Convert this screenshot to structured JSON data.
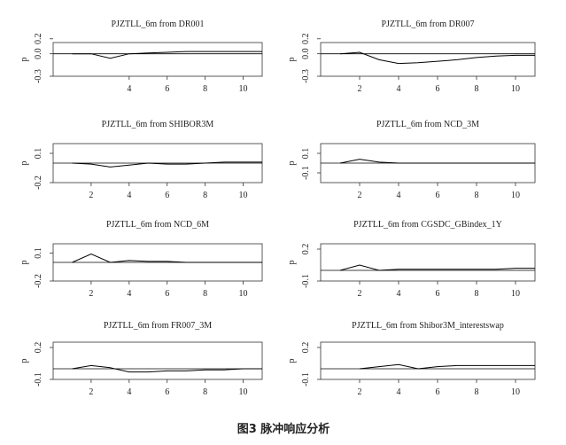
{
  "caption": "图3 脉冲响应分析",
  "chart_data": [
    {
      "type": "line",
      "title": "PJZTLL_6m from DR001",
      "ylabel": "p",
      "ylim": [
        -0.3,
        0.15
      ],
      "yticks": [
        "-0.3",
        "0.0",
        "0.2"
      ],
      "xlim": [
        0,
        11
      ],
      "xticks": [
        "4",
        "6",
        "8",
        "10"
      ],
      "x": [
        1,
        2,
        3,
        4,
        5,
        6,
        7,
        8,
        9,
        10,
        11
      ],
      "values": [
        0.0,
        0.0,
        -0.06,
        0.0,
        0.01,
        0.02,
        0.03,
        0.03,
        0.03,
        0.03,
        0.03
      ]
    },
    {
      "type": "line",
      "title": "PJZTLL_6m from DR007",
      "ylabel": "p",
      "ylim": [
        -0.3,
        0.15
      ],
      "yticks": [
        "-0.3",
        "0.0",
        "0.2"
      ],
      "xlim": [
        0,
        11
      ],
      "xticks": [
        "2",
        "4",
        "6",
        "8",
        "10"
      ],
      "x": [
        1,
        2,
        3,
        4,
        5,
        6,
        7,
        8,
        9,
        10,
        11
      ],
      "values": [
        0.0,
        0.02,
        -0.08,
        -0.13,
        -0.12,
        -0.1,
        -0.08,
        -0.05,
        -0.03,
        -0.02,
        -0.02
      ]
    },
    {
      "type": "line",
      "title": "PJZTLL_6m from SHIBOR3M",
      "ylabel": "p",
      "ylim": [
        -0.2,
        0.2
      ],
      "yticks": [
        "-0.2",
        "0.1"
      ],
      "xlim": [
        0,
        11
      ],
      "xticks": [
        "2",
        "4",
        "6",
        "8",
        "10"
      ],
      "x": [
        1,
        2,
        3,
        4,
        5,
        6,
        7,
        8,
        9,
        10,
        11
      ],
      "values": [
        0.0,
        -0.01,
        -0.04,
        -0.02,
        0.0,
        -0.01,
        -0.01,
        0.0,
        0.01,
        0.01,
        0.01
      ]
    },
    {
      "type": "line",
      "title": "PJZTLL_6m from NCD_3M",
      "ylabel": "p",
      "ylim": [
        -0.2,
        0.2
      ],
      "yticks": [
        "-0.1",
        "0.1"
      ],
      "xlim": [
        0,
        11
      ],
      "xticks": [
        "2",
        "4",
        "6",
        "8",
        "10"
      ],
      "x": [
        1,
        2,
        3,
        4,
        5,
        6,
        7,
        8,
        9,
        10,
        11
      ],
      "values": [
        0.0,
        0.04,
        0.01,
        0.0,
        0.0,
        0.0,
        0.0,
        0.0,
        0.0,
        0.0,
        0.0
      ]
    },
    {
      "type": "line",
      "title": "PJZTLL_6m from NCD_6M",
      "ylabel": "p",
      "ylim": [
        -0.2,
        0.2
      ],
      "yticks": [
        "-0.2",
        "0.1"
      ],
      "xlim": [
        0,
        11
      ],
      "xticks": [
        "2",
        "4",
        "6",
        "8",
        "10"
      ],
      "x": [
        1,
        2,
        3,
        4,
        5,
        6,
        7,
        8,
        9,
        10,
        11
      ],
      "values": [
        0.0,
        0.09,
        0.0,
        0.02,
        0.01,
        0.01,
        0.0,
        0.0,
        0.0,
        0.0,
        0.0
      ]
    },
    {
      "type": "line",
      "title": "PJZTLL_6m from CGSDC_GBindex_1Y",
      "ylabel": "p",
      "ylim": [
        -0.1,
        0.25
      ],
      "yticks": [
        "-0.1",
        "0.2"
      ],
      "xlim": [
        0,
        11
      ],
      "xticks": [
        "2",
        "4",
        "6",
        "8",
        "10"
      ],
      "x": [
        1,
        2,
        3,
        4,
        5,
        6,
        7,
        8,
        9,
        10,
        11
      ],
      "values": [
        0.0,
        0.05,
        0.0,
        0.01,
        0.01,
        0.01,
        0.01,
        0.01,
        0.01,
        0.02,
        0.02
      ]
    },
    {
      "type": "line",
      "title": "PJZTLL_6m from FR007_3M",
      "ylabel": "p",
      "ylim": [
        -0.1,
        0.25
      ],
      "yticks": [
        "-0.1",
        "0.2"
      ],
      "xlim": [
        0,
        11
      ],
      "xticks": [
        "2",
        "4",
        "6",
        "8",
        "10"
      ],
      "x": [
        1,
        2,
        3,
        4,
        5,
        6,
        7,
        8,
        9,
        10,
        11
      ],
      "values": [
        0.0,
        0.03,
        0.01,
        -0.03,
        -0.03,
        -0.02,
        -0.02,
        -0.01,
        -0.01,
        0.0,
        0.0
      ]
    },
    {
      "type": "line",
      "title": "PJZTLL_6m from Shibor3M_interestswap",
      "ylabel": "p",
      "ylim": [
        -0.1,
        0.25
      ],
      "yticks": [
        "-0.1",
        "0.2"
      ],
      "xlim": [
        0,
        11
      ],
      "xticks": [
        "2",
        "4",
        "6",
        "8",
        "10"
      ],
      "x": [
        2,
        3,
        4,
        5,
        6,
        7,
        8,
        9,
        10,
        11
      ],
      "values": [
        0.0,
        0.02,
        0.04,
        0.0,
        0.02,
        0.03,
        0.03,
        0.03,
        0.03,
        0.03
      ]
    }
  ]
}
